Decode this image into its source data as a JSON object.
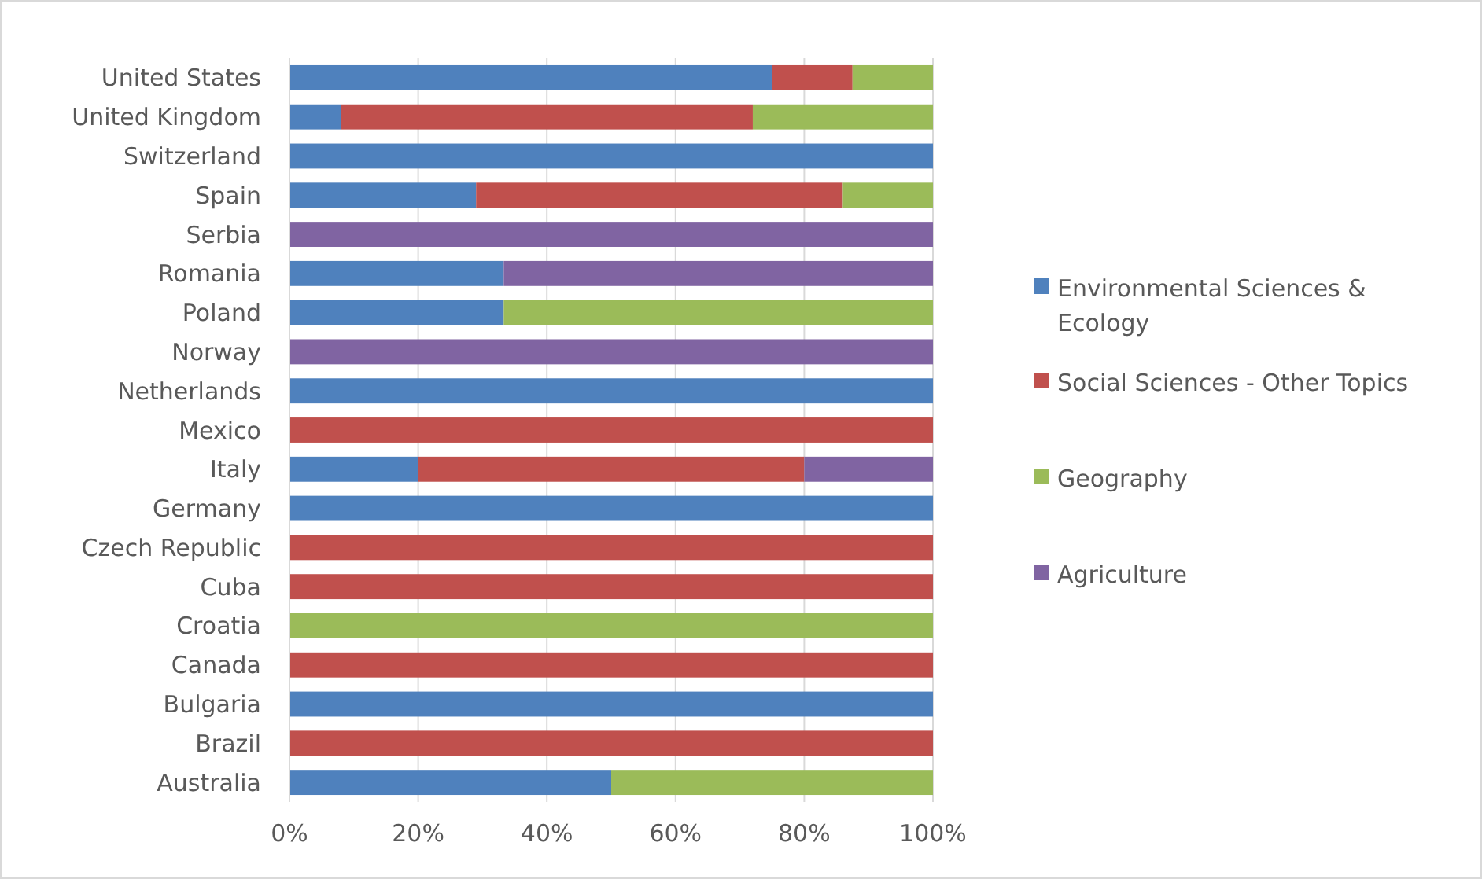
{
  "chart_data": {
    "type": "bar",
    "orientation": "horizontal",
    "stacked": true,
    "categories": [
      "United States",
      "United Kingdom",
      "Switzerland",
      "Spain",
      "Serbia",
      "Romania",
      "Poland",
      "Norway",
      "Netherlands",
      "Mexico",
      "Italy",
      "Germany",
      "Czech Republic",
      "Cuba",
      "Croatia",
      "Canada",
      "Bulgaria",
      "Brazil",
      "Australia"
    ],
    "series": [
      {
        "name": "Environmental Sciences & Ecology",
        "color": "#4f81bd",
        "values": [
          75,
          8,
          100,
          29,
          0,
          33.3,
          33.3,
          0,
          100,
          0,
          20,
          100,
          0,
          0,
          0,
          0,
          100,
          0,
          50
        ]
      },
      {
        "name": "Social Sciences - Other Topics",
        "color": "#c0504d",
        "values": [
          12.5,
          64,
          0,
          57,
          0,
          0,
          0,
          0,
          0,
          100,
          60,
          0,
          100,
          100,
          0,
          100,
          0,
          100,
          0
        ]
      },
      {
        "name": "Geography",
        "color": "#9bbb59",
        "values": [
          12.5,
          28,
          0,
          14,
          0,
          0,
          66.7,
          0,
          0,
          0,
          0,
          0,
          0,
          0,
          100,
          0,
          0,
          0,
          50
        ]
      },
      {
        "name": "Agriculture",
        "color": "#8064a2",
        "values": [
          0,
          0,
          0,
          0,
          100,
          66.7,
          0,
          100,
          0,
          0,
          20,
          0,
          0,
          0,
          0,
          0,
          0,
          0,
          0
        ]
      }
    ],
    "xlim": [
      0,
      100
    ],
    "xticks": [
      {
        "value": 0,
        "label": "0%"
      },
      {
        "value": 20,
        "label": "20%"
      },
      {
        "value": 40,
        "label": "40%"
      },
      {
        "value": 60,
        "label": "60%"
      },
      {
        "value": 80,
        "label": "80%"
      },
      {
        "value": 100,
        "label": "100%"
      }
    ],
    "grid": "x",
    "legend": "right"
  }
}
